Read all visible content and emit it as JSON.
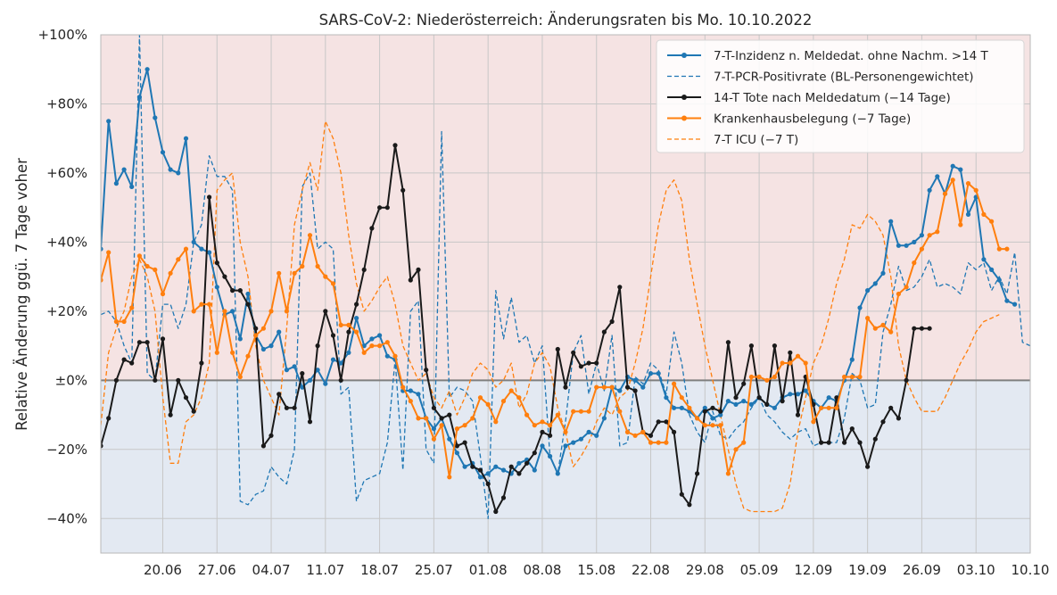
{
  "chart_data": {
    "type": "line",
    "title": "SARS-CoV-2: Niederösterreich: Änderungsraten bis Mo. 10.10.2022",
    "ylabel": "Relative Änderung ggü. 7 Tage voher",
    "xlabel": "",
    "ylim": [
      -50,
      100
    ],
    "x_start": "2022-06-12",
    "x_end": "2022-10-10",
    "grid": true,
    "legend_position": "top-right",
    "background_bands": [
      {
        "from": 0,
        "to": 100,
        "color": "#f5e3e3"
      },
      {
        "from": -50,
        "to": 0,
        "color": "#e3e9f2"
      }
    ],
    "yticks": [
      {
        "value": 100,
        "label": "+100%"
      },
      {
        "value": 80,
        "label": "+80%"
      },
      {
        "value": 60,
        "label": "+60%"
      },
      {
        "value": 40,
        "label": "+40%"
      },
      {
        "value": 20,
        "label": "+20%"
      },
      {
        "value": 0,
        "label": "±0%"
      },
      {
        "value": -20,
        "label": "−20%"
      },
      {
        "value": -40,
        "label": "−40%"
      }
    ],
    "xticks": [
      {
        "date": "2022-06-20",
        "label": "20.06"
      },
      {
        "date": "2022-06-27",
        "label": "27.06"
      },
      {
        "date": "2022-07-04",
        "label": "04.07"
      },
      {
        "date": "2022-07-11",
        "label": "11.07"
      },
      {
        "date": "2022-07-18",
        "label": "18.07"
      },
      {
        "date": "2022-07-25",
        "label": "25.07"
      },
      {
        "date": "2022-08-01",
        "label": "01.08"
      },
      {
        "date": "2022-08-08",
        "label": "08.08"
      },
      {
        "date": "2022-08-15",
        "label": "15.08"
      },
      {
        "date": "2022-08-22",
        "label": "22.08"
      },
      {
        "date": "2022-08-29",
        "label": "29.08"
      },
      {
        "date": "2022-09-05",
        "label": "05.09"
      },
      {
        "date": "2022-09-12",
        "label": "12.09"
      },
      {
        "date": "2022-09-19",
        "label": "19.09"
      },
      {
        "date": "2022-09-26",
        "label": "26.09"
      },
      {
        "date": "2022-10-03",
        "label": "03.10"
      },
      {
        "date": "2022-10-10",
        "label": "10.10"
      }
    ],
    "series": [
      {
        "name": "7-T-Inzidenz n. Meldedat. ohne Nachm. >14 T",
        "color": "#1f77b4",
        "style": "solid",
        "markers": true,
        "start": "2022-06-12",
        "values": [
          38,
          75,
          57,
          61,
          56,
          82,
          90,
          76,
          66,
          61,
          60,
          70,
          40,
          38,
          37,
          27,
          19,
          20,
          12,
          25,
          13,
          9,
          10,
          14,
          3,
          4,
          -2,
          0,
          3,
          -1,
          6,
          5,
          8,
          18,
          10,
          12,
          13,
          7,
          6,
          -3,
          -3,
          -4,
          -11,
          -14,
          -11,
          -17,
          -21,
          -25,
          -24,
          -28,
          -27,
          -25,
          -26,
          -27,
          -24,
          -23,
          -26,
          -19,
          -22,
          -27,
          -19,
          -18,
          -17,
          -15,
          -16,
          -11,
          -2,
          -3,
          1,
          0,
          -2,
          2,
          2,
          -5,
          -8,
          -8,
          -9,
          -11,
          -8,
          -11,
          -10,
          -6,
          -7,
          -6,
          -7,
          -5,
          -7,
          -8,
          -5,
          -4,
          -4,
          -3,
          -6,
          -8,
          -5,
          -6,
          0,
          6,
          21,
          26,
          28,
          31,
          46,
          39,
          39,
          40,
          42,
          55,
          59,
          54,
          62,
          61,
          48,
          53,
          35,
          32,
          29,
          23,
          22
        ]
      },
      {
        "name": "7-T-PCR-Positivrate (BL-Personengewichtet)",
        "color": "#1f77b4",
        "style": "dashed",
        "markers": false,
        "start": "2022-06-12",
        "values": [
          19,
          20,
          17,
          10,
          5,
          100,
          2,
          0,
          22,
          22,
          15,
          22,
          40,
          45,
          65,
          59,
          59,
          55,
          -35,
          -36,
          -33,
          -32,
          -25,
          -28,
          -30,
          -20,
          56,
          60,
          38,
          40,
          38,
          -4,
          -2,
          -35,
          -29,
          -28,
          -27,
          -18,
          6,
          -26,
          20,
          23,
          -20,
          -24,
          72,
          -5,
          -2,
          -3,
          -6,
          -22,
          -40,
          26,
          12,
          24,
          11,
          13,
          5,
          10,
          -22,
          -27,
          -12,
          8,
          13,
          -4,
          5,
          -3,
          13,
          -19,
          -18,
          1,
          -1,
          5,
          3,
          -4,
          14,
          5,
          -10,
          -15,
          -18,
          -9,
          -16,
          -17,
          -14,
          -12,
          -8,
          -5,
          -10,
          -12,
          -15,
          -17,
          -15,
          -14,
          -19,
          -18,
          -18,
          -18,
          -11,
          2,
          0,
          -8,
          -7,
          14,
          22,
          33,
          26,
          27,
          30,
          35,
          27,
          28,
          27,
          25,
          34,
          32,
          34,
          26,
          30,
          25,
          37,
          11,
          10,
          8,
          4,
          4
        ]
      },
      {
        "name": "14-T Tote nach Meldedatum (−14 Tage)",
        "color": "#1a1a1a",
        "style": "solid",
        "markers": true,
        "start": "2022-06-12",
        "values": [
          -19,
          -11,
          0,
          6,
          5,
          11,
          11,
          0,
          12,
          -10,
          0,
          -5,
          -9,
          5,
          53,
          34,
          30,
          26,
          26,
          22,
          15,
          -19,
          -16,
          -4,
          -8,
          -8,
          2,
          -12,
          10,
          20,
          13,
          0,
          14,
          22,
          32,
          44,
          50,
          50,
          68,
          55,
          29,
          32,
          3,
          -8,
          -11,
          -10,
          -19,
          -18,
          -25,
          -26,
          -30,
          -38,
          -34,
          -25,
          -27,
          -24,
          -21,
          -15,
          -16,
          9,
          -2,
          8,
          4,
          5,
          5,
          14,
          17,
          27,
          -2,
          -3,
          -15,
          -16,
          -12,
          -12,
          -15,
          -33,
          -36,
          -27,
          -9,
          -8,
          -9,
          11,
          -5,
          -1,
          10,
          -5,
          -7,
          10,
          -6,
          8,
          -10,
          1,
          -7,
          -18,
          -18,
          -5,
          -18,
          -14,
          -18,
          -25,
          -17,
          -12,
          -8,
          -11,
          0,
          15,
          15,
          15
        ]
      },
      {
        "name": "Krankenhausbelegung (−7 Tage)",
        "color": "#ff7f0e",
        "style": "solid",
        "markers": true,
        "start": "2022-06-12",
        "values": [
          29,
          37,
          17,
          17,
          21,
          36,
          33,
          32,
          25,
          31,
          35,
          38,
          20,
          22,
          22,
          8,
          20,
          8,
          1,
          7,
          13,
          15,
          20,
          31,
          20,
          31,
          33,
          42,
          33,
          30,
          28,
          16,
          16,
          14,
          8,
          10,
          10,
          11,
          7,
          -2,
          -6,
          -11,
          -11,
          -17,
          -13,
          -28,
          -14,
          -13,
          -11,
          -5,
          -7,
          -12,
          -6,
          -3,
          -5,
          -10,
          -13,
          -12,
          -13,
          -10,
          -15,
          -9,
          -9,
          -9,
          -2,
          -2,
          -2,
          -9,
          -15,
          -16,
          -15,
          -18,
          -18,
          -18,
          -1,
          -5,
          -8,
          -11,
          -13,
          -13,
          -13,
          -27,
          -20,
          -18,
          1,
          1,
          0,
          1,
          5,
          5,
          7,
          5,
          -12,
          -8,
          -8,
          -8,
          1,
          1,
          1,
          18,
          15,
          16,
          14,
          25,
          27,
          34,
          38,
          42,
          43,
          54,
          58,
          45,
          57,
          55,
          48,
          46,
          38,
          38
        ]
      },
      {
        "name": "7-T ICU (−7 T)",
        "color": "#ff7f0e",
        "style": "dashed",
        "markers": false,
        "start": "2022-06-12",
        "values": [
          -13,
          8,
          15,
          20,
          30,
          35,
          30,
          20,
          -5,
          -24,
          -24,
          -12,
          -10,
          -5,
          5,
          55,
          58,
          60,
          40,
          30,
          10,
          0,
          -5,
          -10,
          15,
          45,
          55,
          63,
          55,
          75,
          70,
          60,
          42,
          28,
          20,
          23,
          27,
          30,
          22,
          10,
          5,
          0,
          2,
          -5,
          -8,
          -3,
          -10,
          -5,
          2,
          5,
          3,
          -2,
          0,
          5,
          -8,
          -4,
          5,
          8,
          4,
          -8,
          -15,
          -25,
          -22,
          -18,
          -12,
          -8,
          -10,
          -5,
          -3,
          5,
          15,
          30,
          45,
          55,
          58,
          52,
          35,
          22,
          10,
          0,
          -10,
          -20,
          -30,
          -37,
          -38,
          -38,
          -38,
          -38,
          -37,
          -30,
          -15,
          -5,
          5,
          10,
          18,
          28,
          35,
          45,
          44,
          48,
          46,
          42,
          30,
          10,
          0,
          -5,
          -9,
          -9,
          -9,
          -5,
          0,
          5,
          9,
          14,
          17,
          18,
          19
        ]
      }
    ]
  }
}
